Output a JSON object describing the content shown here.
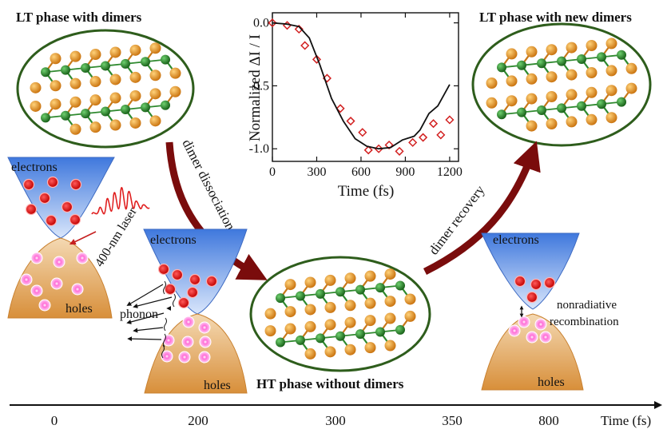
{
  "panels": {
    "lt_left_title": "LT phase with dimers",
    "lt_right_title": "LT phase with new dimers",
    "ht_title": "HT phase without dimers"
  },
  "arrows": {
    "dissociation": "dimer dissociation",
    "recovery": "dimer recovery"
  },
  "bands": {
    "electrons": "electrons",
    "holes": "holes",
    "laser": "400-nm laser",
    "phonon": "phonon",
    "nonradiative_line1": "nonradiative",
    "nonradiative_line2": "recombination"
  },
  "timeline": {
    "label": "Time (fs)",
    "ticks": [
      "0",
      "200",
      "300",
      "350",
      "800"
    ]
  },
  "colors": {
    "ellipse_border": "#2e5d1c",
    "green_atom": "#1f7a1f",
    "orange_atom": "#e08a1a",
    "dark_red_arrow": "#7a0c0c",
    "electron_band": "#6f9de8",
    "hole_band": "#e0a15c",
    "marker": "#d22020"
  },
  "chart_data": {
    "type": "line",
    "xlabel": "Time (fs)",
    "ylabel": "Normalized ΔI / I",
    "xlim": [
      0,
      1260
    ],
    "ylim": [
      -1.1,
      0.08
    ],
    "xticks": [
      "0",
      "300",
      "600",
      "900",
      "1200"
    ],
    "yticks": [
      "0.0",
      "-0.5",
      "-1.0"
    ],
    "series": [
      {
        "style": "markers",
        "marker": "open-diamond",
        "x": [
          0,
          100,
          180,
          220,
          300,
          370,
          460,
          530,
          610,
          650,
          720,
          790,
          860,
          950,
          1020,
          1090,
          1140,
          1200
        ],
        "y": [
          0.0,
          -0.02,
          -0.05,
          -0.18,
          -0.29,
          -0.44,
          -0.68,
          -0.78,
          -0.87,
          -1.01,
          -1.0,
          -0.97,
          -1.02,
          -0.95,
          -0.91,
          -0.8,
          -0.89,
          -0.77
        ]
      },
      {
        "style": "line",
        "x": [
          0,
          100,
          180,
          250,
          320,
          400,
          480,
          560,
          640,
          720,
          800,
          880,
          960,
          1000,
          1060,
          1120,
          1200
        ],
        "y": [
          0.0,
          -0.01,
          -0.03,
          -0.12,
          -0.33,
          -0.6,
          -0.78,
          -0.92,
          -0.98,
          -1.0,
          -0.99,
          -0.93,
          -0.9,
          -0.85,
          -0.72,
          -0.66,
          -0.49
        ]
      }
    ]
  }
}
